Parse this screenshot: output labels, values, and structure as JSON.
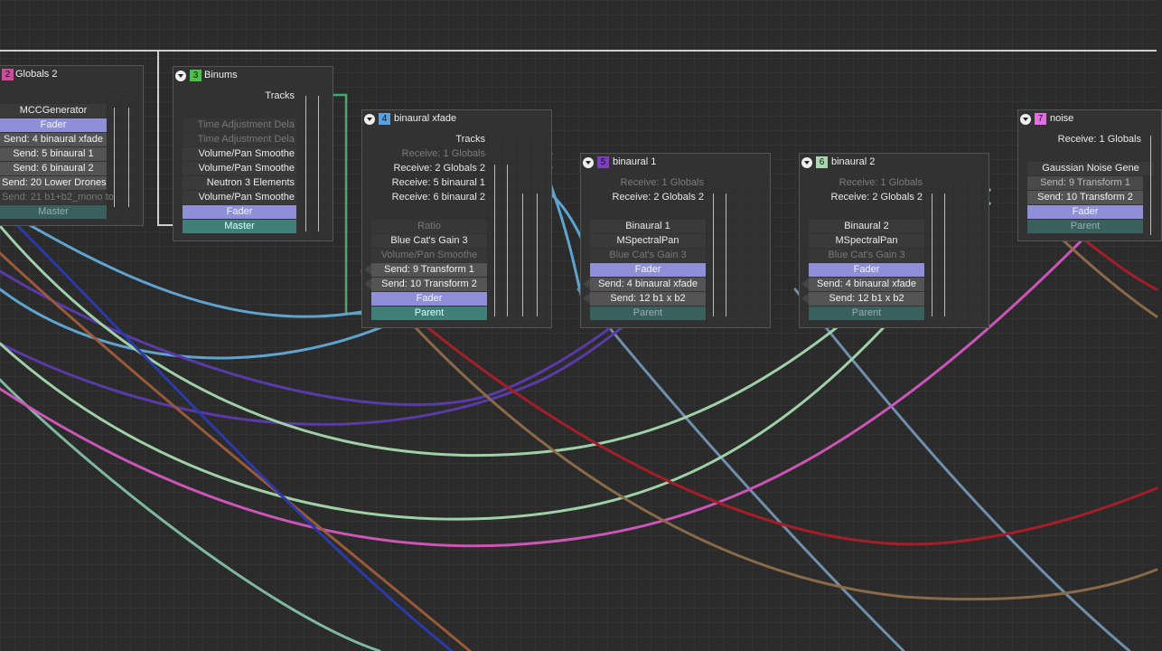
{
  "nodes": {
    "globals2": {
      "num": "2",
      "num_color": "#d04a9a",
      "title": "Globals 2",
      "rows": [
        "MCCGenerator",
        "Fader",
        "Send: 4 binaural xfade",
        "Send: 5 binaural 1",
        "Send: 6 binaural 2",
        "Send: 20 Lower Drones",
        "Send: 21 b1+b2_mono to",
        "Master"
      ]
    },
    "binums": {
      "num": "3",
      "num_color": "#4bc04b",
      "title": "Binums",
      "rows": [
        "Tracks",
        "Time Adjustment Dela",
        "Time Adjustment Dela",
        "Volume/Pan Smoothe",
        "Volume/Pan Smoothe",
        "Neutron 3 Elements",
        "Volume/Pan Smoothe",
        "Fader",
        "Master"
      ]
    },
    "xfade": {
      "num": "4",
      "num_color": "#5aa0e0",
      "title": "binaural xfade",
      "rows": [
        "Tracks",
        "Receive: 1 Globals",
        "Receive: 2 Globals 2",
        "Receive: 5 binaural 1",
        "Receive: 6 binaural 2",
        "Ratio",
        "Blue Cat's Gain 3",
        "Volume/Pan Smoothe",
        "Send: 9 Transform 1",
        "Send: 10 Transform 2",
        "Fader",
        "Parent"
      ]
    },
    "b1": {
      "num": "5",
      "num_color": "#7b3fc0",
      "title": "binaural 1",
      "rows": [
        "Receive: 1 Globals",
        "Receive: 2 Globals 2",
        "Binaural 1",
        "MSpectralPan",
        "Blue Cat's Gain 3",
        "Fader",
        "Send: 4 binaural xfade",
        "Send: 12 b1 x b2",
        "Parent"
      ]
    },
    "b2": {
      "num": "6",
      "num_color": "#a8d8b0",
      "title": "binaural 2",
      "rows": [
        "Receive: 1 Globals",
        "Receive: 2 Globals 2",
        "Binaural 2",
        "MSpectralPan",
        "Blue Cat's Gain 3",
        "Fader",
        "Send: 4 binaural xfade",
        "Send: 12 b1 x b2",
        "Parent"
      ]
    },
    "noise": {
      "num": "7",
      "num_color": "#e070e0",
      "title": "noise",
      "rows": [
        "Receive: 1 Globals",
        "Gaussian Noise Gene",
        "Send: 9 Transform 1",
        "Send: 10 Transform 2",
        "Fader",
        "Parent"
      ]
    }
  },
  "colors": {
    "blue": "#5fa3cf",
    "purple": "#5a3aa8",
    "mint": "#9fd0a8",
    "pink": "#cc55b8",
    "red": "#a41e2a",
    "brown": "#8a6a48",
    "green": "#4aa86a",
    "steel": "#6f8fad",
    "deep_blue": "#2a3aa8",
    "orange": "#9a5a3a"
  }
}
